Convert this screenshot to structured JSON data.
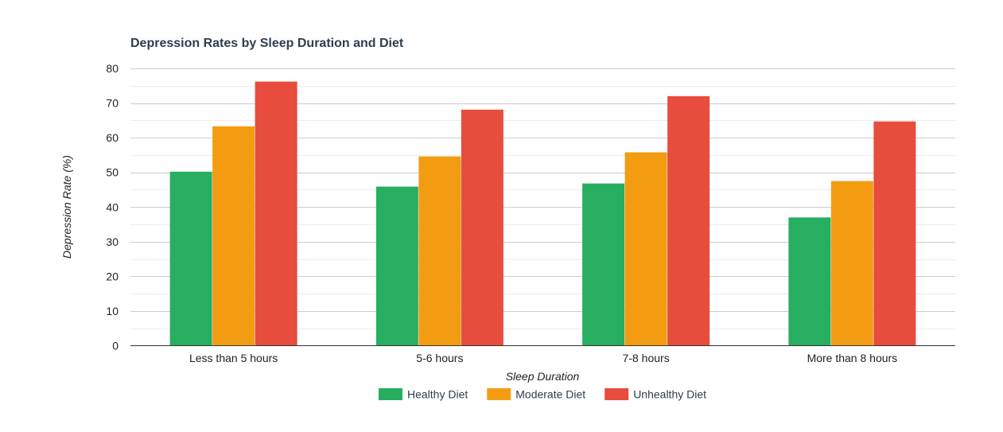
{
  "chart_data": {
    "type": "bar",
    "title": "Depression Rates by Sleep Duration and Diet",
    "xlabel": "Sleep Duration",
    "ylabel": "Depression Rate (%)",
    "ylim": [
      0,
      80
    ],
    "yticks": [
      0,
      10,
      20,
      30,
      40,
      50,
      60,
      70,
      80
    ],
    "grid": true,
    "legend_position": "bottom",
    "categories": [
      "Less than 5 hours",
      "5-6 hours",
      "7-8 hours",
      "More than 8 hours"
    ],
    "series": [
      {
        "name": "Healthy Diet",
        "color": "#27ae60",
        "values": [
          50.2,
          45.9,
          46.8,
          37.0
        ]
      },
      {
        "name": "Moderate Diet",
        "color": "#f39c12",
        "values": [
          63.3,
          54.6,
          55.8,
          47.5
        ]
      },
      {
        "name": "Unhealthy Diet",
        "color": "#e74c3c",
        "values": [
          76.2,
          68.1,
          72.0,
          64.7
        ]
      }
    ]
  }
}
